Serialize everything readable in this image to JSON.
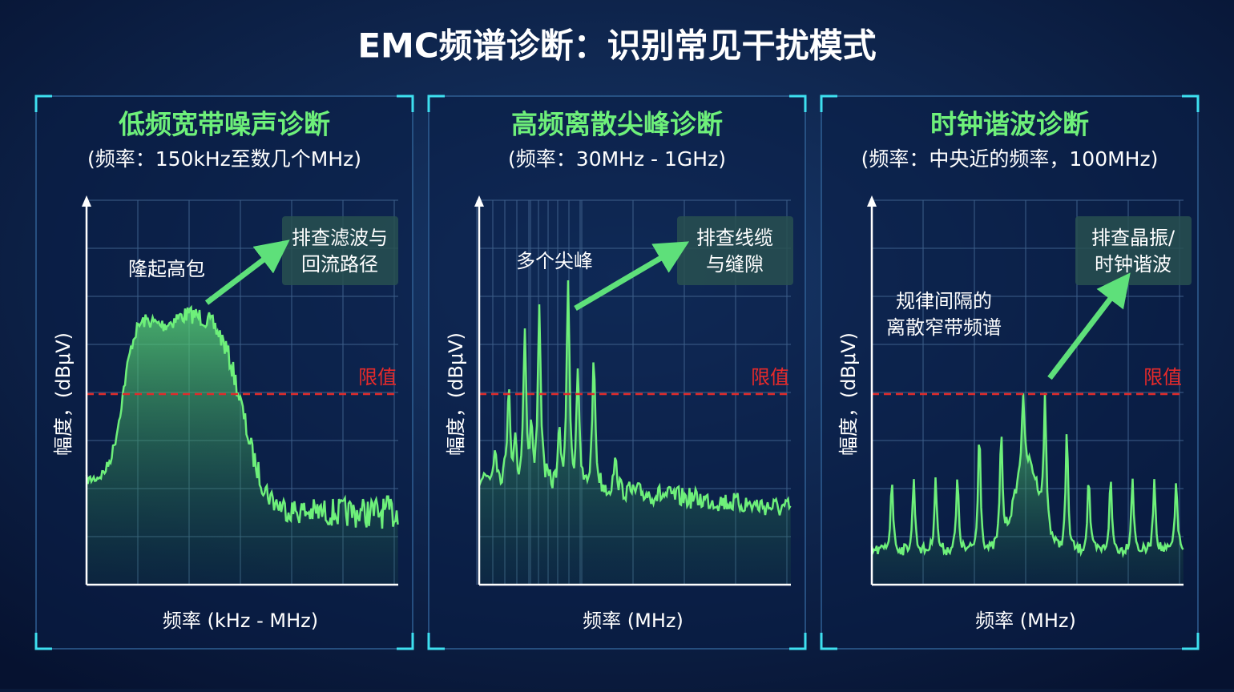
{
  "title": "EMC频谱诊断：识别常见干扰模式",
  "panels": [
    {
      "title": "低频宽带噪声诊断",
      "subtitle": "(频率：150kHz至数几个MHz)",
      "annotation": [
        "隆起高包"
      ],
      "callout": [
        "排查滤波与",
        "回流路径"
      ],
      "limit_label": "限值",
      "y_label": "幅度，(dBμV)",
      "x_label": "频率 (kHz - MHz)"
    },
    {
      "title": "高频离散尖峰诊断",
      "subtitle": "(频率：30MHz - 1GHz)",
      "annotation": [
        "多个尖峰"
      ],
      "callout": [
        "排查线缆",
        "与缝隙"
      ],
      "limit_label": "限值",
      "y_label": "幅度，(dBμV)",
      "x_label": "频率 (MHz)"
    },
    {
      "title": "时钟谐波诊断",
      "subtitle": "(频率：中央近的频率，100MHz)",
      "annotation": [
        "规律间隔的",
        "离散窄带频谱"
      ],
      "callout": [
        "排查晶振/",
        "时钟谐波"
      ],
      "limit_label": "限值",
      "y_label": "幅度，(dBμV)",
      "x_label": "频率 (MHz)"
    }
  ]
}
